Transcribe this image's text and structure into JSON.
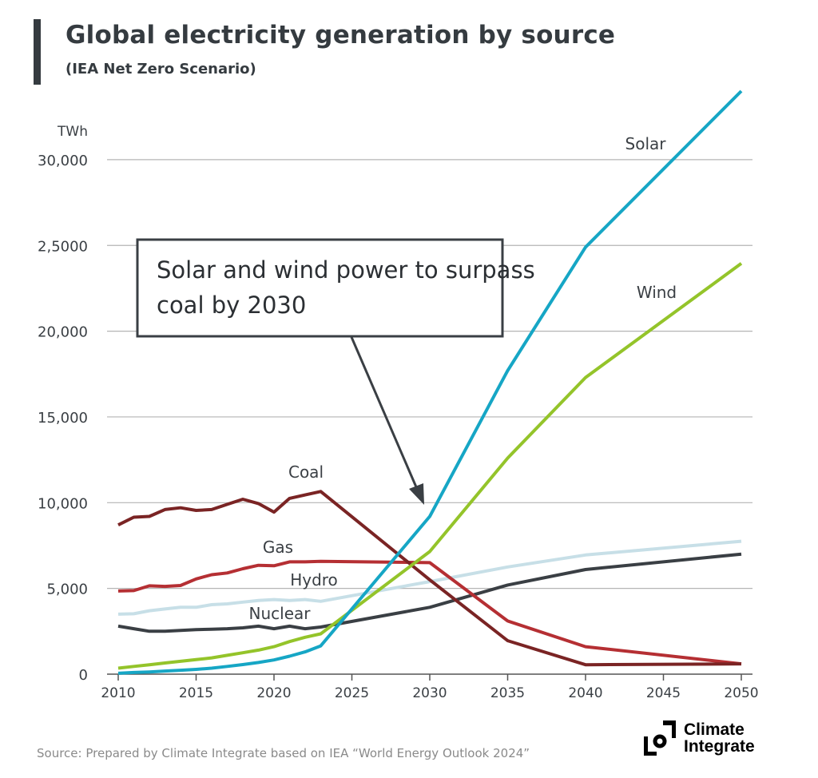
{
  "title": "Global electricity generation by source",
  "subtitle": "(IEA Net Zero Scenario)",
  "source": "Source: Prepared by Climate Integrate based on IEA “World Energy Outlook 2024”",
  "logo": {
    "line1": "Climate",
    "line2": "Integrate"
  },
  "chart_data": {
    "type": "line",
    "title": "Global electricity generation by source",
    "ylabel": "TWh",
    "ylim": [
      0,
      30000
    ],
    "xlim": [
      2010,
      2050
    ],
    "grid": true,
    "yticks": [
      0,
      5000,
      10000,
      15000,
      20000,
      25000,
      30000
    ],
    "ytick_labels": [
      "0",
      "5,000",
      "10,000",
      "15,000",
      "20,000",
      "2,5000",
      "30,000"
    ],
    "xticks": [
      2010,
      2015,
      2020,
      2025,
      2030,
      2035,
      2040,
      2045,
      2050
    ],
    "xtick_labels": [
      "2010",
      "2015",
      "2020",
      "2025",
      "2030",
      "2035",
      "2040",
      "2045",
      "2050"
    ],
    "x": [
      2010,
      2011,
      2012,
      2013,
      2014,
      2015,
      2016,
      2017,
      2018,
      2019,
      2020,
      2021,
      2022,
      2023,
      2030,
      2035,
      2040,
      2050
    ],
    "series": [
      {
        "name": "Coal",
        "color": "#7a2424",
        "values": [
          8700,
          9150,
          9200,
          9600,
          9700,
          9550,
          9600,
          9900,
          10200,
          9950,
          9450,
          10250,
          10450,
          10650,
          5500,
          1950,
          550,
          600
        ]
      },
      {
        "name": "Gas",
        "color": "#b52f33",
        "values": [
          4850,
          4870,
          5150,
          5120,
          5170,
          5550,
          5800,
          5900,
          6150,
          6350,
          6320,
          6550,
          6550,
          6580,
          6500,
          3100,
          1600,
          600
        ]
      },
      {
        "name": "Hydro",
        "color": "#c7dfe7",
        "values": [
          3500,
          3520,
          3700,
          3800,
          3900,
          3900,
          4050,
          4100,
          4200,
          4300,
          4350,
          4300,
          4350,
          4250,
          5400,
          6250,
          6950,
          7750
        ]
      },
      {
        "name": "Nuclear",
        "color": "#3a3f44",
        "values": [
          2800,
          2650,
          2500,
          2500,
          2550,
          2600,
          2620,
          2650,
          2700,
          2800,
          2650,
          2800,
          2650,
          2750,
          3900,
          5200,
          6100,
          7000
        ]
      },
      {
        "name": "Wind",
        "color": "#94c42a",
        "values": [
          350,
          450,
          550,
          650,
          750,
          850,
          950,
          1100,
          1250,
          1400,
          1600,
          1900,
          2150,
          2350,
          7150,
          12600,
          17300,
          23950
        ]
      },
      {
        "name": "Solar",
        "color": "#16a6c5",
        "values": [
          50,
          100,
          130,
          180,
          230,
          280,
          350,
          450,
          560,
          680,
          830,
          1050,
          1300,
          1650,
          9200,
          17700,
          24900,
          34000
        ]
      }
    ],
    "annotation": "Solar and wind power to surpass coal by 2030"
  }
}
